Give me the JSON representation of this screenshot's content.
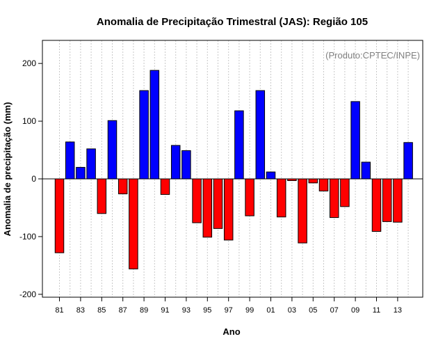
{
  "chart_data": {
    "type": "bar",
    "title": "Anomalia de Precipitação Trimestral (JAS): Região 105",
    "xlabel": "Ano",
    "ylabel": "Anomalia de precipitação (mm)",
    "annotation": "(Produto:CPTEC/INPE)",
    "ylim": [
      -205,
      240
    ],
    "yticks": [
      -200,
      -100,
      0,
      100,
      200
    ],
    "xtick_labels": [
      "81",
      "83",
      "85",
      "87",
      "89",
      "91",
      "93",
      "95",
      "97",
      "99",
      "01",
      "03",
      "05",
      "07",
      "09",
      "11",
      "13"
    ],
    "categories": [
      "1981",
      "1982",
      "1983",
      "1984",
      "1985",
      "1986",
      "1987",
      "1988",
      "1989",
      "1990",
      "1991",
      "1992",
      "1993",
      "1994",
      "1995",
      "1996",
      "1997",
      "1998",
      "1999",
      "2000",
      "2001",
      "2002",
      "2003",
      "2004",
      "2005",
      "2006",
      "2007",
      "2008",
      "2009",
      "2010",
      "2011",
      "2012",
      "2013",
      "2014"
    ],
    "values": [
      -128,
      64,
      20,
      52,
      -60,
      101,
      -26,
      -156,
      153,
      188,
      -27,
      58,
      49,
      -76,
      -101,
      -86,
      -106,
      118,
      -64,
      153,
      12,
      -66,
      -3,
      -111,
      -7,
      -21,
      -67,
      -48,
      134,
      29,
      -91,
      -74,
      -75,
      63
    ],
    "grid": true,
    "colors": {
      "positive": "#0000ff",
      "negative": "#ff0000",
      "grid": "#c8c8c8"
    }
  }
}
